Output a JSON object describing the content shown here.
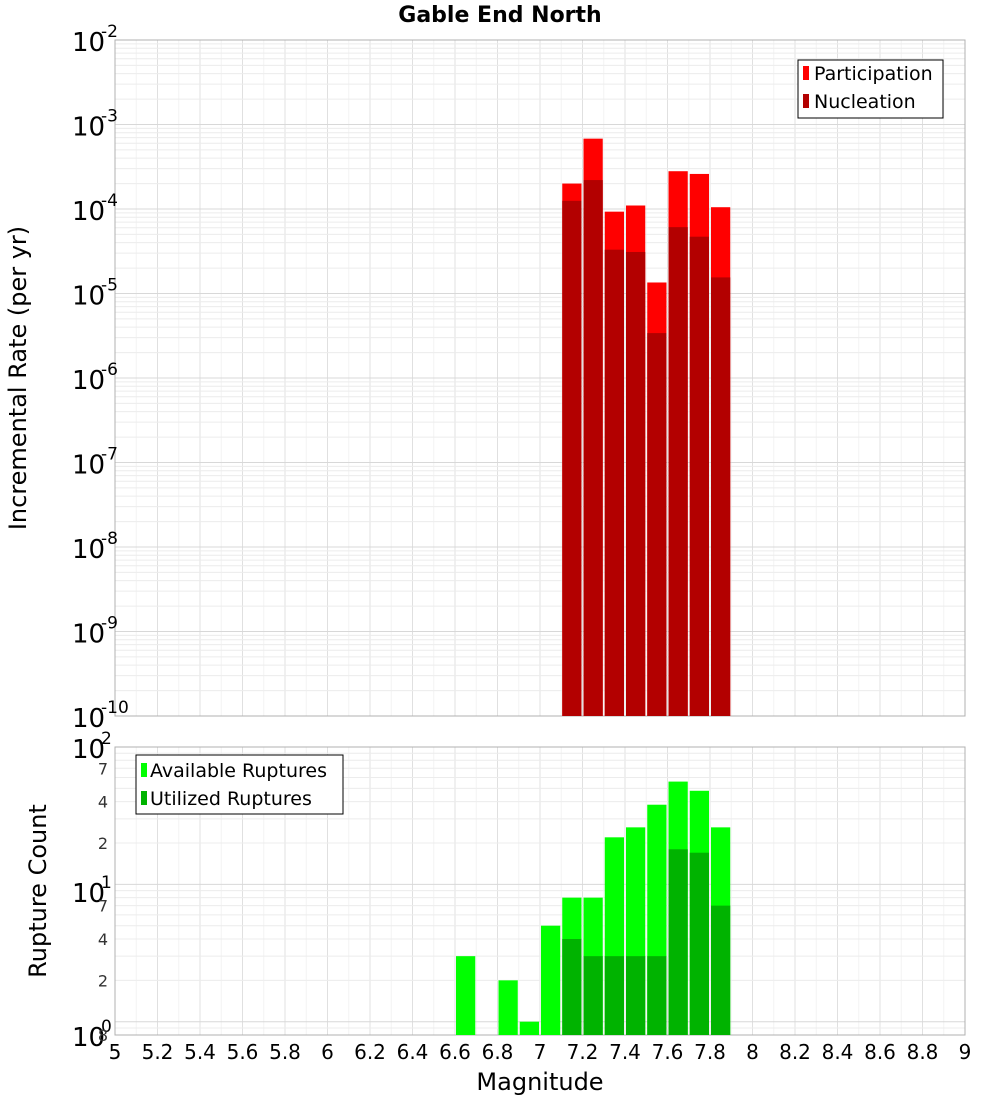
{
  "chart_data": {
    "type": "bar",
    "title": "Gable End North",
    "xlabel": "Magnitude",
    "xlim": [
      5,
      9
    ],
    "x_ticks": [
      "5",
      "5.2",
      "5.4",
      "5.6",
      "5.8",
      "6",
      "6.2",
      "6.4",
      "6.6",
      "6.8",
      "7",
      "7.2",
      "7.4",
      "7.6",
      "7.8",
      "8",
      "8.2",
      "8.4",
      "8.6",
      "8.8",
      "9"
    ],
    "bin_width": 0.1,
    "panels": [
      {
        "id": "rates",
        "ylabel": "Incremental Rate (per yr)",
        "yscale": "log",
        "ylim": [
          1e-10,
          0.01
        ],
        "y_ticks": [
          {
            "base": "10",
            "exp": "-2"
          },
          {
            "base": "10",
            "exp": "-3"
          },
          {
            "base": "10",
            "exp": "-4"
          },
          {
            "base": "10",
            "exp": "-5"
          },
          {
            "base": "10",
            "exp": "-6"
          },
          {
            "base": "10",
            "exp": "-7"
          },
          {
            "base": "10",
            "exp": "-8"
          },
          {
            "base": "10",
            "exp": "-9"
          },
          {
            "base": "10",
            "exp": "-10"
          }
        ],
        "grid": true,
        "legend_position": "top-right",
        "x": [
          7.15,
          7.25,
          7.35,
          7.45,
          7.55,
          7.65,
          7.75,
          7.85
        ],
        "series": [
          {
            "name": "Participation",
            "color": "#ff0000",
            "values": [
              0.0002,
              0.00068,
              9.3e-05,
              0.00011,
              1.35e-05,
              0.00028,
              0.00026,
              0.000105
            ]
          },
          {
            "name": "Nucleation",
            "color": "#b30000",
            "values": [
              0.000125,
              0.00022,
              3.3e-05,
              3.1e-05,
              3.4e-06,
              6.1e-05,
              4.7e-05,
              1.55e-05
            ]
          }
        ]
      },
      {
        "id": "counts",
        "ylabel": "Rupture Count",
        "yscale": "log",
        "ylim": [
          0.8,
          100
        ],
        "y_ticks": [
          {
            "base": "10",
            "exp": "2"
          },
          {
            "base": "10",
            "exp": "1"
          },
          {
            "base": "10",
            "exp": "0"
          }
        ],
        "y_minor_ticks": [
          "7",
          "4",
          "2",
          "7",
          "4",
          "2",
          "8"
        ],
        "grid": true,
        "legend_position": "top-left",
        "x": [
          6.65,
          6.85,
          6.95,
          7.05,
          7.15,
          7.25,
          7.35,
          7.45,
          7.55,
          7.65,
          7.75,
          7.85
        ],
        "series": [
          {
            "name": "Available Ruptures",
            "color": "#00ff00",
            "values": [
              3,
              2,
              1,
              5,
              8,
              8,
              22,
              26,
              38,
              56,
              48,
              26
            ]
          },
          {
            "name": "Utilized Ruptures",
            "color": "#00b300",
            "values": [
              0,
              0,
              0,
              0,
              4,
              3,
              3,
              3,
              3,
              18,
              17,
              7
            ]
          }
        ]
      }
    ]
  }
}
